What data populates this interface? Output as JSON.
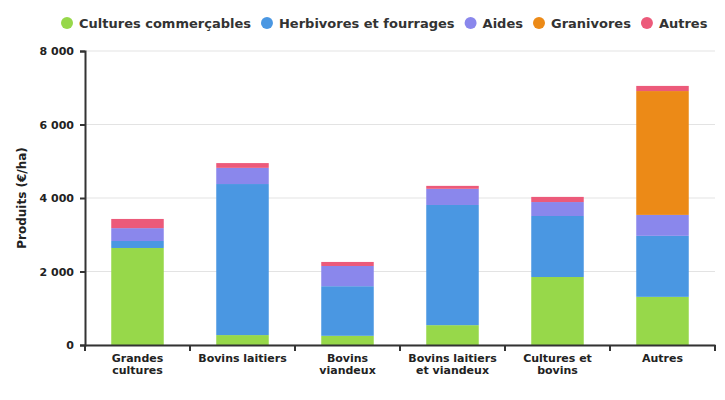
{
  "chart_data": {
    "type": "bar",
    "stacked": true,
    "grid": true,
    "legend": "top",
    "y_label": "Produits (€/ha)",
    "categories": [
      "Grandes cultures",
      "Bovins laitiers",
      "Bovins viandeux",
      "Bovins laitiers et viandeux",
      "Cultures et bovins",
      "Autres"
    ],
    "series": [
      {
        "name": "Cultures commerçables",
        "color": "#97d84a",
        "values": [
          2640,
          270,
          250,
          540,
          1850,
          1310
        ]
      },
      {
        "name": "Herbivores et fourrages",
        "color": "#4a97e2",
        "values": [
          190,
          4110,
          1350,
          3270,
          1660,
          1660
        ]
      },
      {
        "name": "Aides",
        "color": "#8a87ec",
        "values": [
          350,
          440,
          550,
          440,
          380,
          570
        ]
      },
      {
        "name": "Granivores",
        "color": "#ec8a17",
        "values": [
          0,
          0,
          0,
          0,
          0,
          3370
        ]
      },
      {
        "name": "Autres",
        "color": "#ec5a7a",
        "values": [
          250,
          130,
          110,
          80,
          140,
          140
        ]
      }
    ],
    "ylim": [
      0,
      8000
    ],
    "yticks": [
      0,
      {
        "value": 2000,
        "label": "2 000"
      },
      {
        "value": 4000,
        "label": "4 000"
      },
      {
        "value": 6000,
        "label": "6 000"
      },
      {
        "value": 8000,
        "label": "8 000"
      }
    ]
  }
}
